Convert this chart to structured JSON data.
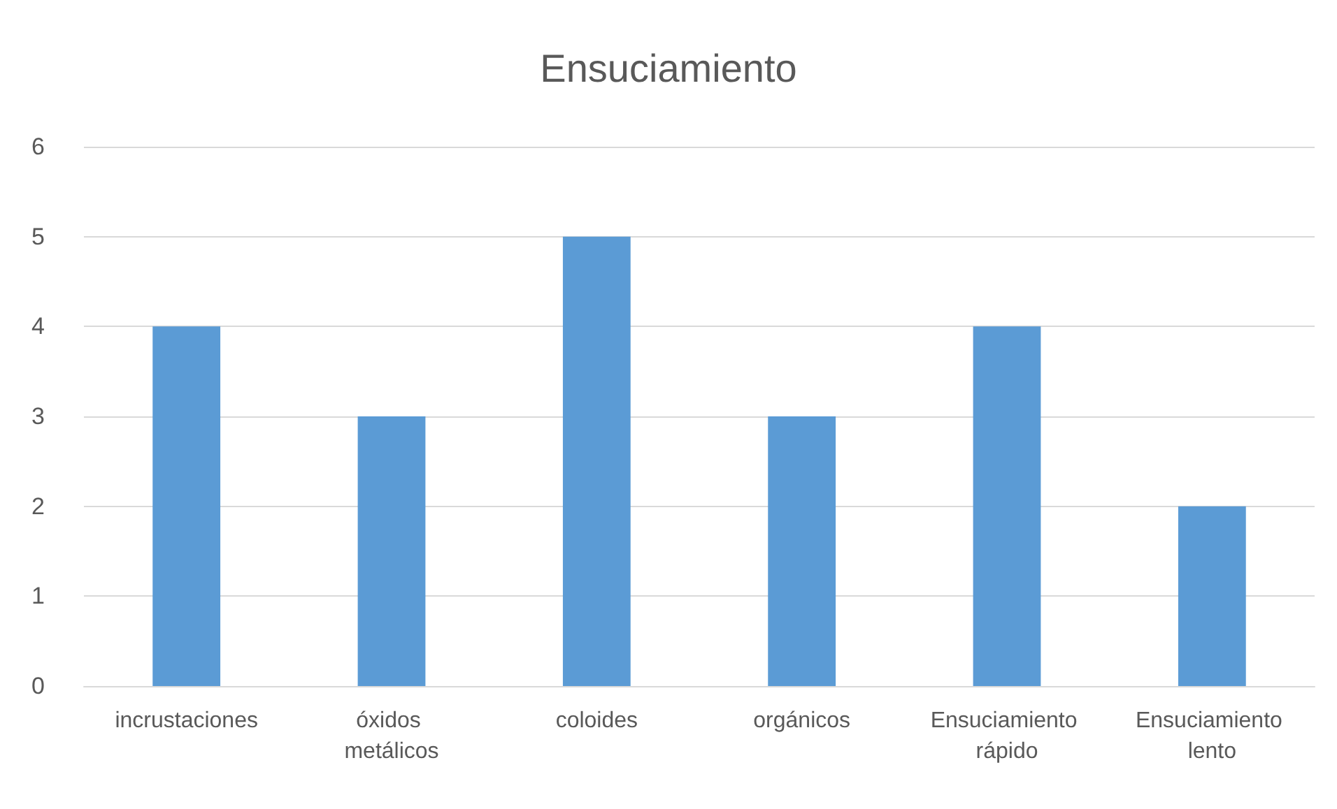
{
  "chart_data": {
    "type": "bar",
    "title": "Ensuciamiento",
    "categories": [
      "incrustaciones",
      "óxidos metálicos",
      "coloides",
      "orgánicos",
      "Ensuciamiento rápido",
      "Ensuciamiento lento"
    ],
    "values": [
      4,
      3,
      5,
      3,
      4,
      2
    ],
    "color": "#5b9bd5",
    "ylim": [
      0,
      6
    ],
    "yticks": [
      0,
      1,
      2,
      3,
      4,
      5,
      6
    ],
    "grid": "y"
  }
}
